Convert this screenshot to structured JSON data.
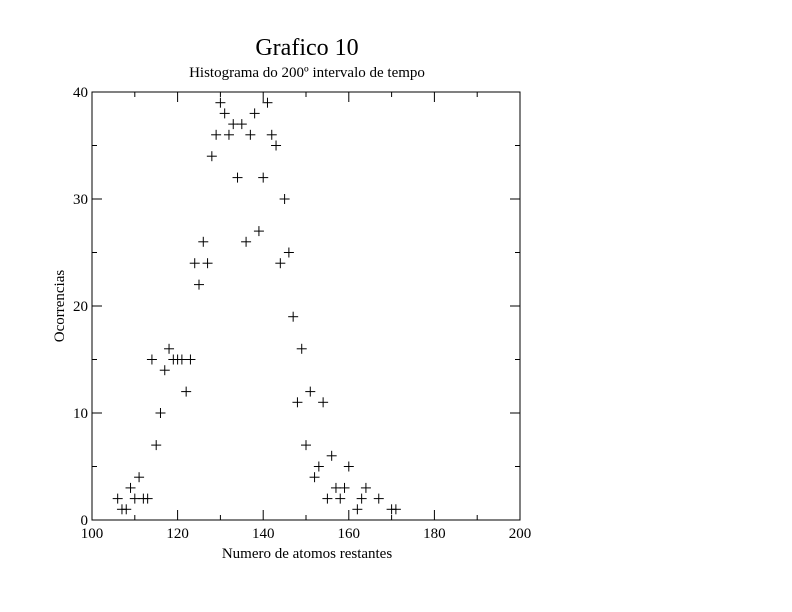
{
  "chart_data": {
    "type": "scatter",
    "title": "Grafico 10",
    "subtitle": "Histograma do 200º intervalo de tempo",
    "xlabel": "Numero de atomos restantes",
    "ylabel": "Ocorrencias",
    "xlim": [
      100,
      200
    ],
    "ylim": [
      0,
      40
    ],
    "xticks": [
      100,
      120,
      140,
      160,
      180,
      200
    ],
    "yticks": [
      0,
      10,
      20,
      30,
      40
    ],
    "grid": false,
    "marker": "plus",
    "series": [
      {
        "points": [
          [
            106,
            2
          ],
          [
            107,
            1
          ],
          [
            108,
            1
          ],
          [
            109,
            3
          ],
          [
            110,
            2
          ],
          [
            111,
            4
          ],
          [
            112,
            2
          ],
          [
            113,
            2
          ],
          [
            114,
            15
          ],
          [
            115,
            7
          ],
          [
            116,
            10
          ],
          [
            117,
            14
          ],
          [
            118,
            16
          ],
          [
            119,
            15
          ],
          [
            120,
            15
          ],
          [
            121,
            15
          ],
          [
            122,
            12
          ],
          [
            123,
            15
          ],
          [
            124,
            24
          ],
          [
            125,
            22
          ],
          [
            126,
            26
          ],
          [
            127,
            24
          ],
          [
            128,
            34
          ],
          [
            129,
            36
          ],
          [
            130,
            39
          ],
          [
            131,
            38
          ],
          [
            132,
            36
          ],
          [
            133,
            37
          ],
          [
            134,
            32
          ],
          [
            135,
            37
          ],
          [
            136,
            26
          ],
          [
            137,
            36
          ],
          [
            138,
            38
          ],
          [
            139,
            27
          ],
          [
            140,
            32
          ],
          [
            141,
            39
          ],
          [
            142,
            36
          ],
          [
            143,
            35
          ],
          [
            144,
            24
          ],
          [
            145,
            30
          ],
          [
            146,
            25
          ],
          [
            147,
            19
          ],
          [
            148,
            11
          ],
          [
            149,
            16
          ],
          [
            150,
            7
          ],
          [
            151,
            12
          ],
          [
            152,
            4
          ],
          [
            153,
            5
          ],
          [
            154,
            11
          ],
          [
            155,
            2
          ],
          [
            156,
            6
          ],
          [
            157,
            3
          ],
          [
            158,
            2
          ],
          [
            159,
            3
          ],
          [
            160,
            5
          ],
          [
            162,
            1
          ],
          [
            163,
            2
          ],
          [
            164,
            3
          ],
          [
            167,
            2
          ],
          [
            170,
            1
          ],
          [
            171,
            1
          ]
        ]
      }
    ]
  }
}
